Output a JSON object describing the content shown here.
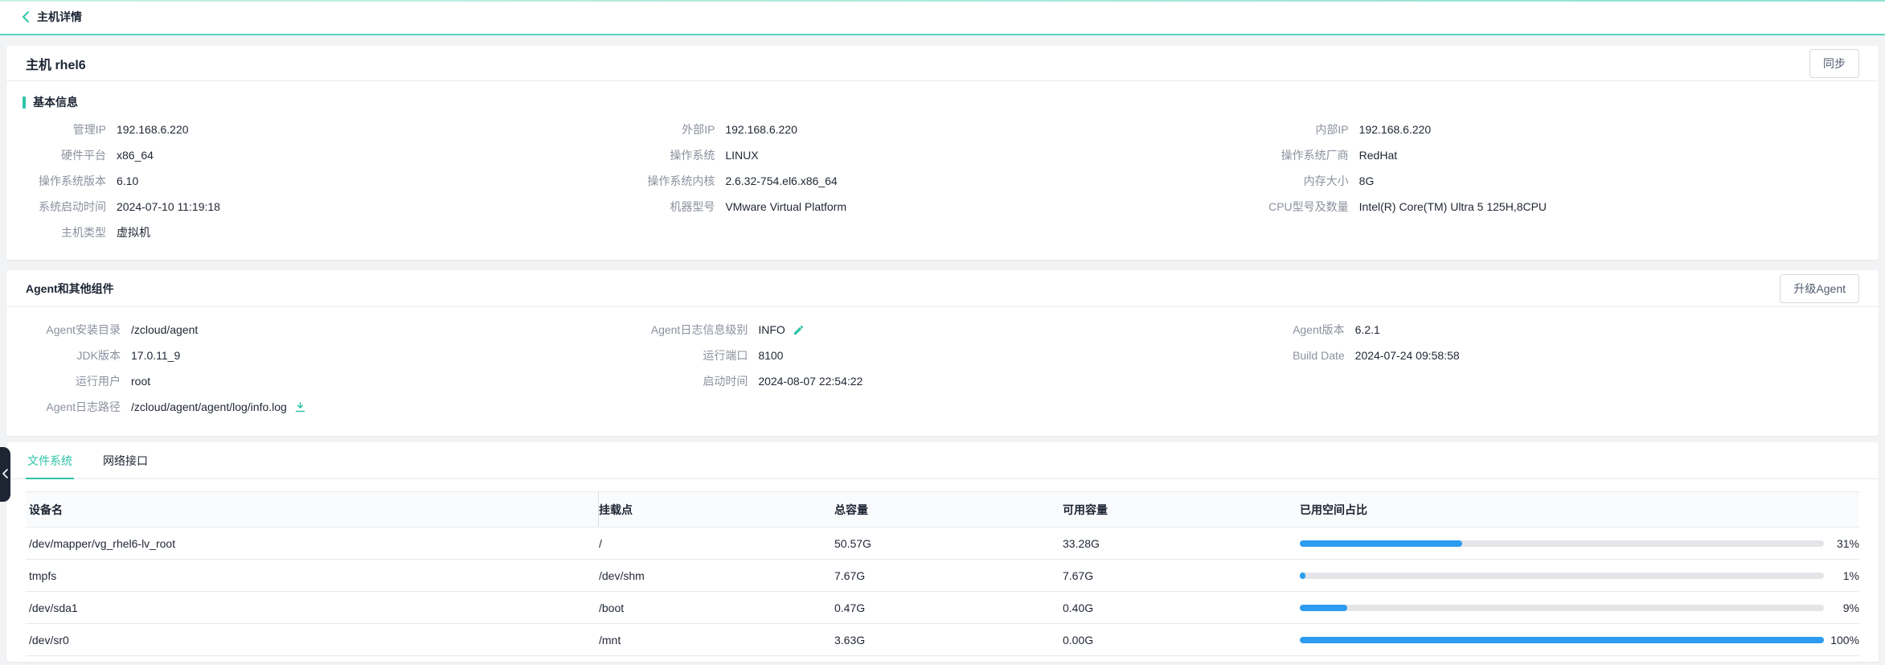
{
  "page": {
    "back_title": "主机详情",
    "host_title": "主机 rhel6",
    "sync_button": "同步"
  },
  "colors": {
    "accent_teal": "#2fc3a7",
    "topbar_line": "#5ad4bd",
    "progress_blue": "#2d9cf0",
    "progress_track": "#e3e5e8",
    "handle_bg": "#1e2634"
  },
  "icons": {
    "back": "chevron-left-icon",
    "edit": "edit-pencil-icon",
    "download": "download-icon",
    "collapse": "chevron-left-icon"
  },
  "basic_info": {
    "title": "基本信息",
    "columns": [
      [
        {
          "label": "管理IP",
          "value": "192.168.6.220"
        },
        {
          "label": "硬件平台",
          "value": "x86_64"
        },
        {
          "label": "操作系统版本",
          "value": "6.10"
        },
        {
          "label": "系统启动时间",
          "value": "2024-07-10 11:19:18"
        },
        {
          "label": "主机类型",
          "value": "虚拟机"
        }
      ],
      [
        {
          "label": "外部IP",
          "value": "192.168.6.220"
        },
        {
          "label": "操作系统",
          "value": "LINUX"
        },
        {
          "label": "操作系统内核",
          "value": "2.6.32-754.el6.x86_64"
        },
        {
          "label": "机器型号",
          "value": "VMware Virtual Platform"
        }
      ],
      [
        {
          "label": "内部IP",
          "value": "192.168.6.220"
        },
        {
          "label": "操作系统厂商",
          "value": "RedHat"
        },
        {
          "label": "内存大小",
          "value": "8G"
        },
        {
          "label": "CPU型号及数量",
          "value": "Intel(R) Core(TM) Ultra 5 125H,8CPU"
        }
      ]
    ]
  },
  "agent": {
    "title": "Agent和其他组件",
    "upgrade_button": "升级Agent",
    "columns": [
      [
        {
          "label": "Agent安装目录",
          "value": "/zcloud/agent"
        },
        {
          "label": "JDK版本",
          "value": "17.0.11_9"
        },
        {
          "label": "运行用户",
          "value": "root"
        },
        {
          "label": "Agent日志路径",
          "value": "/zcloud/agent/agent/log/info.log",
          "icon": "download-icon"
        }
      ],
      [
        {
          "label": "Agent日志信息级别",
          "value": "INFO",
          "icon": "edit-pencil-icon"
        },
        {
          "label": "运行端口",
          "value": "8100"
        },
        {
          "label": "启动时间",
          "value": "2024-08-07 22:54:22"
        }
      ],
      [
        {
          "label": "Agent版本",
          "value": "6.2.1"
        },
        {
          "label": "Build Date",
          "value": "2024-07-24 09:58:58"
        }
      ]
    ]
  },
  "tabs": [
    {
      "label": "文件系统",
      "active": true
    },
    {
      "label": "网络接口",
      "active": false
    }
  ],
  "filesystem_table": {
    "columns": [
      "设备名",
      "挂载点",
      "总容量",
      "可用容量",
      "已用空间占比"
    ],
    "rows": [
      {
        "device": "/dev/mapper/vg_rhel6-lv_root",
        "mount": "/",
        "total": "50.57G",
        "available": "33.28G",
        "used_percent": 31
      },
      {
        "device": "tmpfs",
        "mount": "/dev/shm",
        "total": "7.67G",
        "available": "7.67G",
        "used_percent": 1
      },
      {
        "device": "/dev/sda1",
        "mount": "/boot",
        "total": "0.47G",
        "available": "0.40G",
        "used_percent": 9
      },
      {
        "device": "/dev/sr0",
        "mount": "/mnt",
        "total": "3.63G",
        "available": "0.00G",
        "used_percent": 100
      }
    ]
  }
}
